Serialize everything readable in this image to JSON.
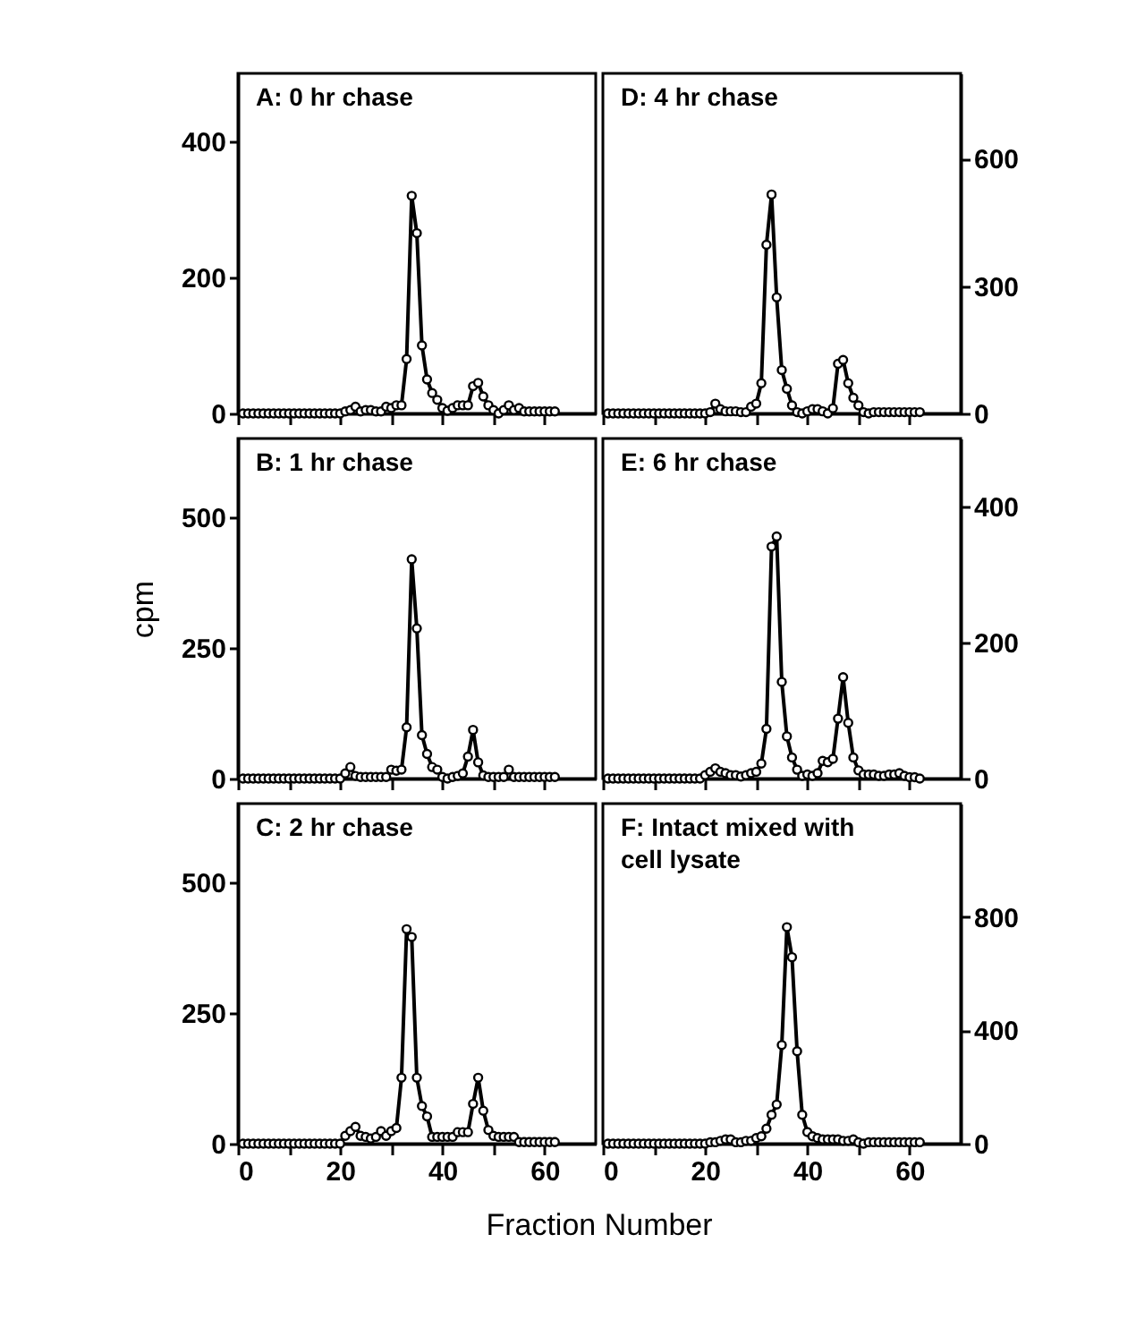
{
  "chart_data": [
    {
      "type": "line",
      "title": "A: 0 hr chase",
      "x": [
        1,
        2,
        3,
        4,
        5,
        6,
        7,
        8,
        9,
        10,
        11,
        12,
        13,
        14,
        15,
        16,
        17,
        18,
        19,
        20,
        21,
        22,
        23,
        24,
        25,
        26,
        27,
        28,
        29,
        30,
        31,
        32,
        33,
        34,
        35,
        36,
        37,
        38,
        39,
        40,
        41,
        42,
        43,
        44,
        45,
        46,
        47,
        48,
        49,
        50,
        51,
        52,
        53,
        54,
        55,
        56,
        57,
        58,
        59,
        60,
        61,
        62
      ],
      "marker": "circle",
      "xlim": [
        0,
        70
      ],
      "xticks": [
        {
          "value": 0,
          "label": null
        },
        {
          "value": 10,
          "label": null
        },
        {
          "value": 20,
          "label": null
        },
        {
          "value": 30,
          "label": null
        },
        {
          "value": 40,
          "label": null
        },
        {
          "value": 50,
          "label": null
        },
        {
          "value": 60,
          "label": null
        }
      ],
      "ylim": [
        0,
        500
      ],
      "yticks": [
        0,
        200,
        400
      ],
      "tick_labels": "y",
      "series": [
        {
          "color": "#000000",
          "values": [
            0,
            0,
            0,
            0,
            0,
            0,
            0,
            0,
            0,
            0,
            0,
            0,
            0,
            0,
            0,
            0,
            0,
            0,
            0,
            0,
            3,
            5,
            10,
            3,
            5,
            5,
            3,
            3,
            10,
            8,
            12,
            12,
            80,
            320,
            265,
            100,
            50,
            30,
            20,
            8,
            4,
            8,
            12,
            12,
            12,
            40,
            45,
            25,
            12,
            5,
            0,
            5,
            12,
            5,
            8,
            3,
            3,
            3,
            3,
            3,
            3,
            3
          ]
        }
      ]
    },
    {
      "type": "line",
      "title": "D: 4 hr chase",
      "x": [
        1,
        2,
        3,
        4,
        5,
        6,
        7,
        8,
        9,
        10,
        11,
        12,
        13,
        14,
        15,
        16,
        17,
        18,
        19,
        20,
        21,
        22,
        23,
        24,
        25,
        26,
        27,
        28,
        29,
        30,
        31,
        32,
        33,
        34,
        35,
        36,
        37,
        38,
        39,
        40,
        41,
        42,
        43,
        44,
        45,
        46,
        47,
        48,
        49,
        50,
        51,
        52,
        53,
        54,
        55,
        56,
        57,
        58,
        59,
        60,
        61,
        62
      ],
      "marker": "circle",
      "xlim": [
        0,
        70
      ],
      "xticks": [
        {
          "value": 0,
          "label": null
        },
        {
          "value": 10,
          "label": null
        },
        {
          "value": 20,
          "label": null
        },
        {
          "value": 30,
          "label": null
        },
        {
          "value": 40,
          "label": null
        },
        {
          "value": 50,
          "label": null
        },
        {
          "value": 60,
          "label": null
        }
      ],
      "y2lim": [
        0,
        800
      ],
      "y2ticks": [
        0,
        300,
        600
      ],
      "tick_labels": "y",
      "series": [
        {
          "color": "#000000",
          "axis": "y2",
          "values": [
            0,
            0,
            0,
            0,
            0,
            0,
            0,
            0,
            0,
            0,
            0,
            0,
            0,
            0,
            0,
            0,
            0,
            0,
            0,
            0,
            3,
            23,
            10,
            5,
            5,
            5,
            3,
            3,
            16,
            23,
            71,
            397,
            515,
            273,
            102,
            58,
            19,
            3,
            0,
            5,
            10,
            10,
            5,
            0,
            12,
            117,
            126,
            71,
            37,
            19,
            3,
            0,
            3,
            3,
            3,
            3,
            3,
            3,
            3,
            3,
            3,
            3
          ]
        }
      ]
    },
    {
      "type": "line",
      "title": "B: 1 hr chase",
      "ylabel": "cpm",
      "x": [
        1,
        2,
        3,
        4,
        5,
        6,
        7,
        8,
        9,
        10,
        11,
        12,
        13,
        14,
        15,
        16,
        17,
        18,
        19,
        20,
        21,
        22,
        23,
        24,
        25,
        26,
        27,
        28,
        29,
        30,
        31,
        32,
        33,
        34,
        35,
        36,
        37,
        38,
        39,
        40,
        41,
        42,
        43,
        44,
        45,
        46,
        47,
        48,
        49,
        50,
        51,
        52,
        53,
        54,
        55,
        56,
        57,
        58,
        59,
        60,
        61,
        62
      ],
      "marker": "circle",
      "xlim": [
        0,
        70
      ],
      "xticks": [
        {
          "value": 0,
          "label": null
        },
        {
          "value": 10,
          "label": null
        },
        {
          "value": 20,
          "label": null
        },
        {
          "value": 30,
          "label": null
        },
        {
          "value": 40,
          "label": null
        },
        {
          "value": 50,
          "label": null
        },
        {
          "value": 60,
          "label": null
        }
      ],
      "ylim": [
        0,
        650
      ],
      "yticks": [
        0,
        250,
        500
      ],
      "tick_labels": "y",
      "series": [
        {
          "color": "#000000",
          "values": [
            0,
            0,
            0,
            0,
            0,
            0,
            0,
            0,
            0,
            0,
            0,
            0,
            0,
            0,
            0,
            0,
            0,
            0,
            0,
            0,
            10,
            22,
            5,
            3,
            3,
            3,
            3,
            3,
            3,
            17,
            15,
            17,
            98,
            419,
            287,
            83,
            47,
            22,
            17,
            3,
            0,
            3,
            5,
            10,
            42,
            93,
            31,
            6,
            3,
            3,
            3,
            3,
            17,
            3,
            3,
            3,
            3,
            3,
            3,
            3,
            3,
            3
          ]
        }
      ]
    },
    {
      "type": "line",
      "title": "E: 6 hr chase",
      "x": [
        1,
        2,
        3,
        4,
        5,
        6,
        7,
        8,
        9,
        10,
        11,
        12,
        13,
        14,
        15,
        16,
        17,
        18,
        19,
        20,
        21,
        22,
        23,
        24,
        25,
        26,
        27,
        28,
        29,
        30,
        31,
        32,
        33,
        34,
        35,
        36,
        37,
        38,
        39,
        40,
        41,
        42,
        43,
        44,
        45,
        46,
        47,
        48,
        49,
        50,
        51,
        52,
        53,
        54,
        55,
        56,
        57,
        58,
        59,
        60,
        61,
        62
      ],
      "marker": "circle",
      "xlim": [
        0,
        70
      ],
      "xticks": [
        {
          "value": 0,
          "label": null
        },
        {
          "value": 10,
          "label": null
        },
        {
          "value": 20,
          "label": null
        },
        {
          "value": 30,
          "label": null
        },
        {
          "value": 40,
          "label": null
        },
        {
          "value": 50,
          "label": null
        },
        {
          "value": 60,
          "label": null
        }
      ],
      "y2lim": [
        0,
        500
      ],
      "y2ticks": [
        0,
        200,
        400
      ],
      "tick_labels": "y",
      "series": [
        {
          "color": "#000000",
          "axis": "y2",
          "values": [
            0,
            0,
            0,
            0,
            0,
            0,
            0,
            0,
            0,
            0,
            0,
            0,
            0,
            0,
            0,
            0,
            0,
            0,
            0,
            5,
            10,
            15,
            10,
            8,
            5,
            5,
            3,
            5,
            8,
            10,
            22,
            73,
            341,
            356,
            142,
            62,
            31,
            13,
            4,
            6,
            4,
            8,
            26,
            24,
            29,
            88,
            149,
            82,
            31,
            12,
            6,
            6,
            6,
            4,
            4,
            6,
            6,
            8,
            4,
            2,
            2,
            0
          ]
        }
      ]
    },
    {
      "type": "line",
      "title": "C: 2 hr chase",
      "xlabel": "Fraction Number",
      "x": [
        1,
        2,
        3,
        4,
        5,
        6,
        7,
        8,
        9,
        10,
        11,
        12,
        13,
        14,
        15,
        16,
        17,
        18,
        19,
        20,
        21,
        22,
        23,
        24,
        25,
        26,
        27,
        28,
        29,
        30,
        31,
        32,
        33,
        34,
        35,
        36,
        37,
        38,
        39,
        40,
        41,
        42,
        43,
        44,
        45,
        46,
        47,
        48,
        49,
        50,
        51,
        52,
        53,
        54,
        55,
        56,
        57,
        58,
        59,
        60,
        61,
        62
      ],
      "marker": "circle",
      "xlim": [
        0,
        70
      ],
      "xticks": [
        0,
        {
          "value": 10,
          "label": null
        },
        20,
        {
          "value": 30,
          "label": null
        },
        40,
        {
          "value": 50,
          "label": null
        },
        60
      ],
      "ylim": [
        0,
        650
      ],
      "yticks": [
        0,
        250,
        500
      ],
      "series": [
        {
          "color": "#000000",
          "values": [
            0,
            0,
            0,
            0,
            0,
            0,
            0,
            0,
            0,
            0,
            0,
            0,
            0,
            0,
            0,
            0,
            0,
            0,
            0,
            0,
            15,
            24,
            32,
            15,
            13,
            10,
            13,
            24,
            15,
            24,
            30,
            126,
            410,
            395,
            126,
            72,
            52,
            13,
            13,
            13,
            13,
            13,
            22,
            22,
            22,
            76,
            126,
            63,
            26,
            15,
            13,
            13,
            13,
            13,
            3,
            3,
            3,
            3,
            3,
            3,
            3,
            3
          ]
        }
      ]
    },
    {
      "type": "line",
      "title": "F: Intact mixed with cell lysate",
      "x": [
        1,
        2,
        3,
        4,
        5,
        6,
        7,
        8,
        9,
        10,
        11,
        12,
        13,
        14,
        15,
        16,
        17,
        18,
        19,
        20,
        21,
        22,
        23,
        24,
        25,
        26,
        27,
        28,
        29,
        30,
        31,
        32,
        33,
        34,
        35,
        36,
        37,
        38,
        39,
        40,
        41,
        42,
        43,
        44,
        45,
        46,
        47,
        48,
        49,
        50,
        51,
        52,
        53,
        54,
        55,
        56,
        57,
        58,
        59,
        60,
        61,
        62
      ],
      "marker": "circle",
      "xlim": [
        0,
        70
      ],
      "xticks": [
        0,
        {
          "value": 10,
          "label": null
        },
        20,
        {
          "value": 30,
          "label": null
        },
        40,
        {
          "value": 50,
          "label": null
        },
        60
      ],
      "y2lim": [
        0,
        1200
      ],
      "y2ticks": [
        0,
        400,
        800
      ],
      "series": [
        {
          "color": "#000000",
          "axis": "y2",
          "values": [
            0,
            0,
            0,
            0,
            0,
            0,
            0,
            0,
            0,
            0,
            0,
            0,
            0,
            0,
            0,
            0,
            0,
            0,
            0,
            0,
            5,
            5,
            10,
            15,
            15,
            5,
            5,
            10,
            10,
            20,
            26,
            53,
            102,
            138,
            348,
            764,
            658,
            326,
            102,
            41,
            26,
            20,
            15,
            15,
            15,
            15,
            10,
            10,
            15,
            5,
            0,
            5,
            5,
            5,
            5,
            5,
            5,
            5,
            5,
            5,
            5,
            5
          ]
        }
      ]
    }
  ]
}
